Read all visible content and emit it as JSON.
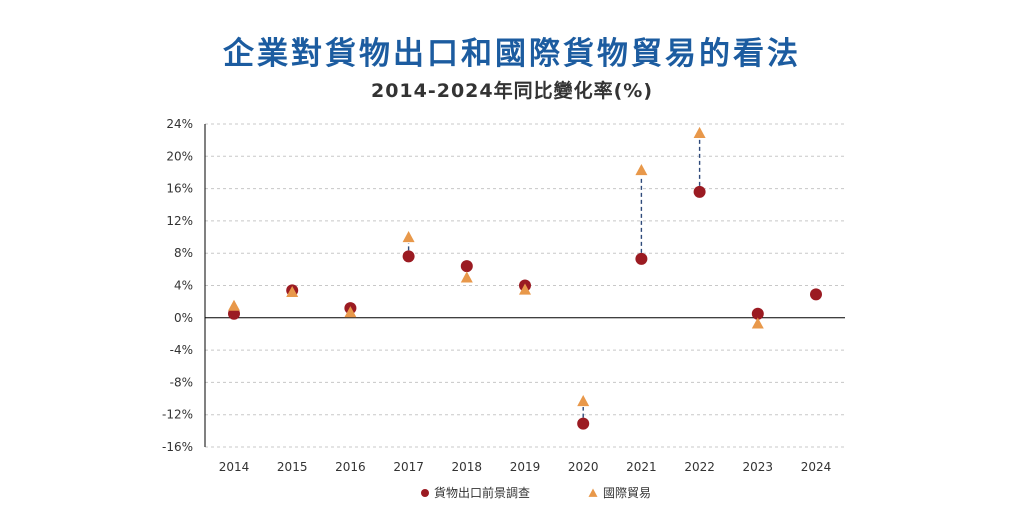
{
  "chart_data": {
    "type": "scatter",
    "title": "企業對貨物出口和國際貨物貿易的看法",
    "subtitle": "2014-2024年同比變化率(%)",
    "categories": [
      "2014",
      "2015",
      "2016",
      "2017",
      "2018",
      "2019",
      "2020",
      "2021",
      "2022",
      "2023",
      "2024"
    ],
    "y_ticks": [
      "24%",
      "20%",
      "16%",
      "12%",
      "8%",
      "4%",
      "0%",
      "-4%",
      "-8%",
      "-12%",
      "-16%"
    ],
    "ylim": [
      -16,
      24
    ],
    "series": [
      {
        "name": "貨物出口前景調查",
        "marker": "circle",
        "color": "#9b1b22",
        "values": [
          0.5,
          3.4,
          1.2,
          7.6,
          6.4,
          4.0,
          -13.1,
          7.3,
          15.6,
          0.5,
          2.9
        ]
      },
      {
        "name": "國際貿易",
        "marker": "triangle",
        "color": "#e8984a",
        "values": [
          1.5,
          3.2,
          0.7,
          10.0,
          5.0,
          3.5,
          -10.3,
          18.3,
          22.9,
          -0.7,
          null
        ]
      }
    ],
    "colors": {
      "axis": "#000000",
      "grid": "#c8c8c8",
      "connector": "#2e4a7a",
      "title": "#1c5ca0"
    }
  }
}
